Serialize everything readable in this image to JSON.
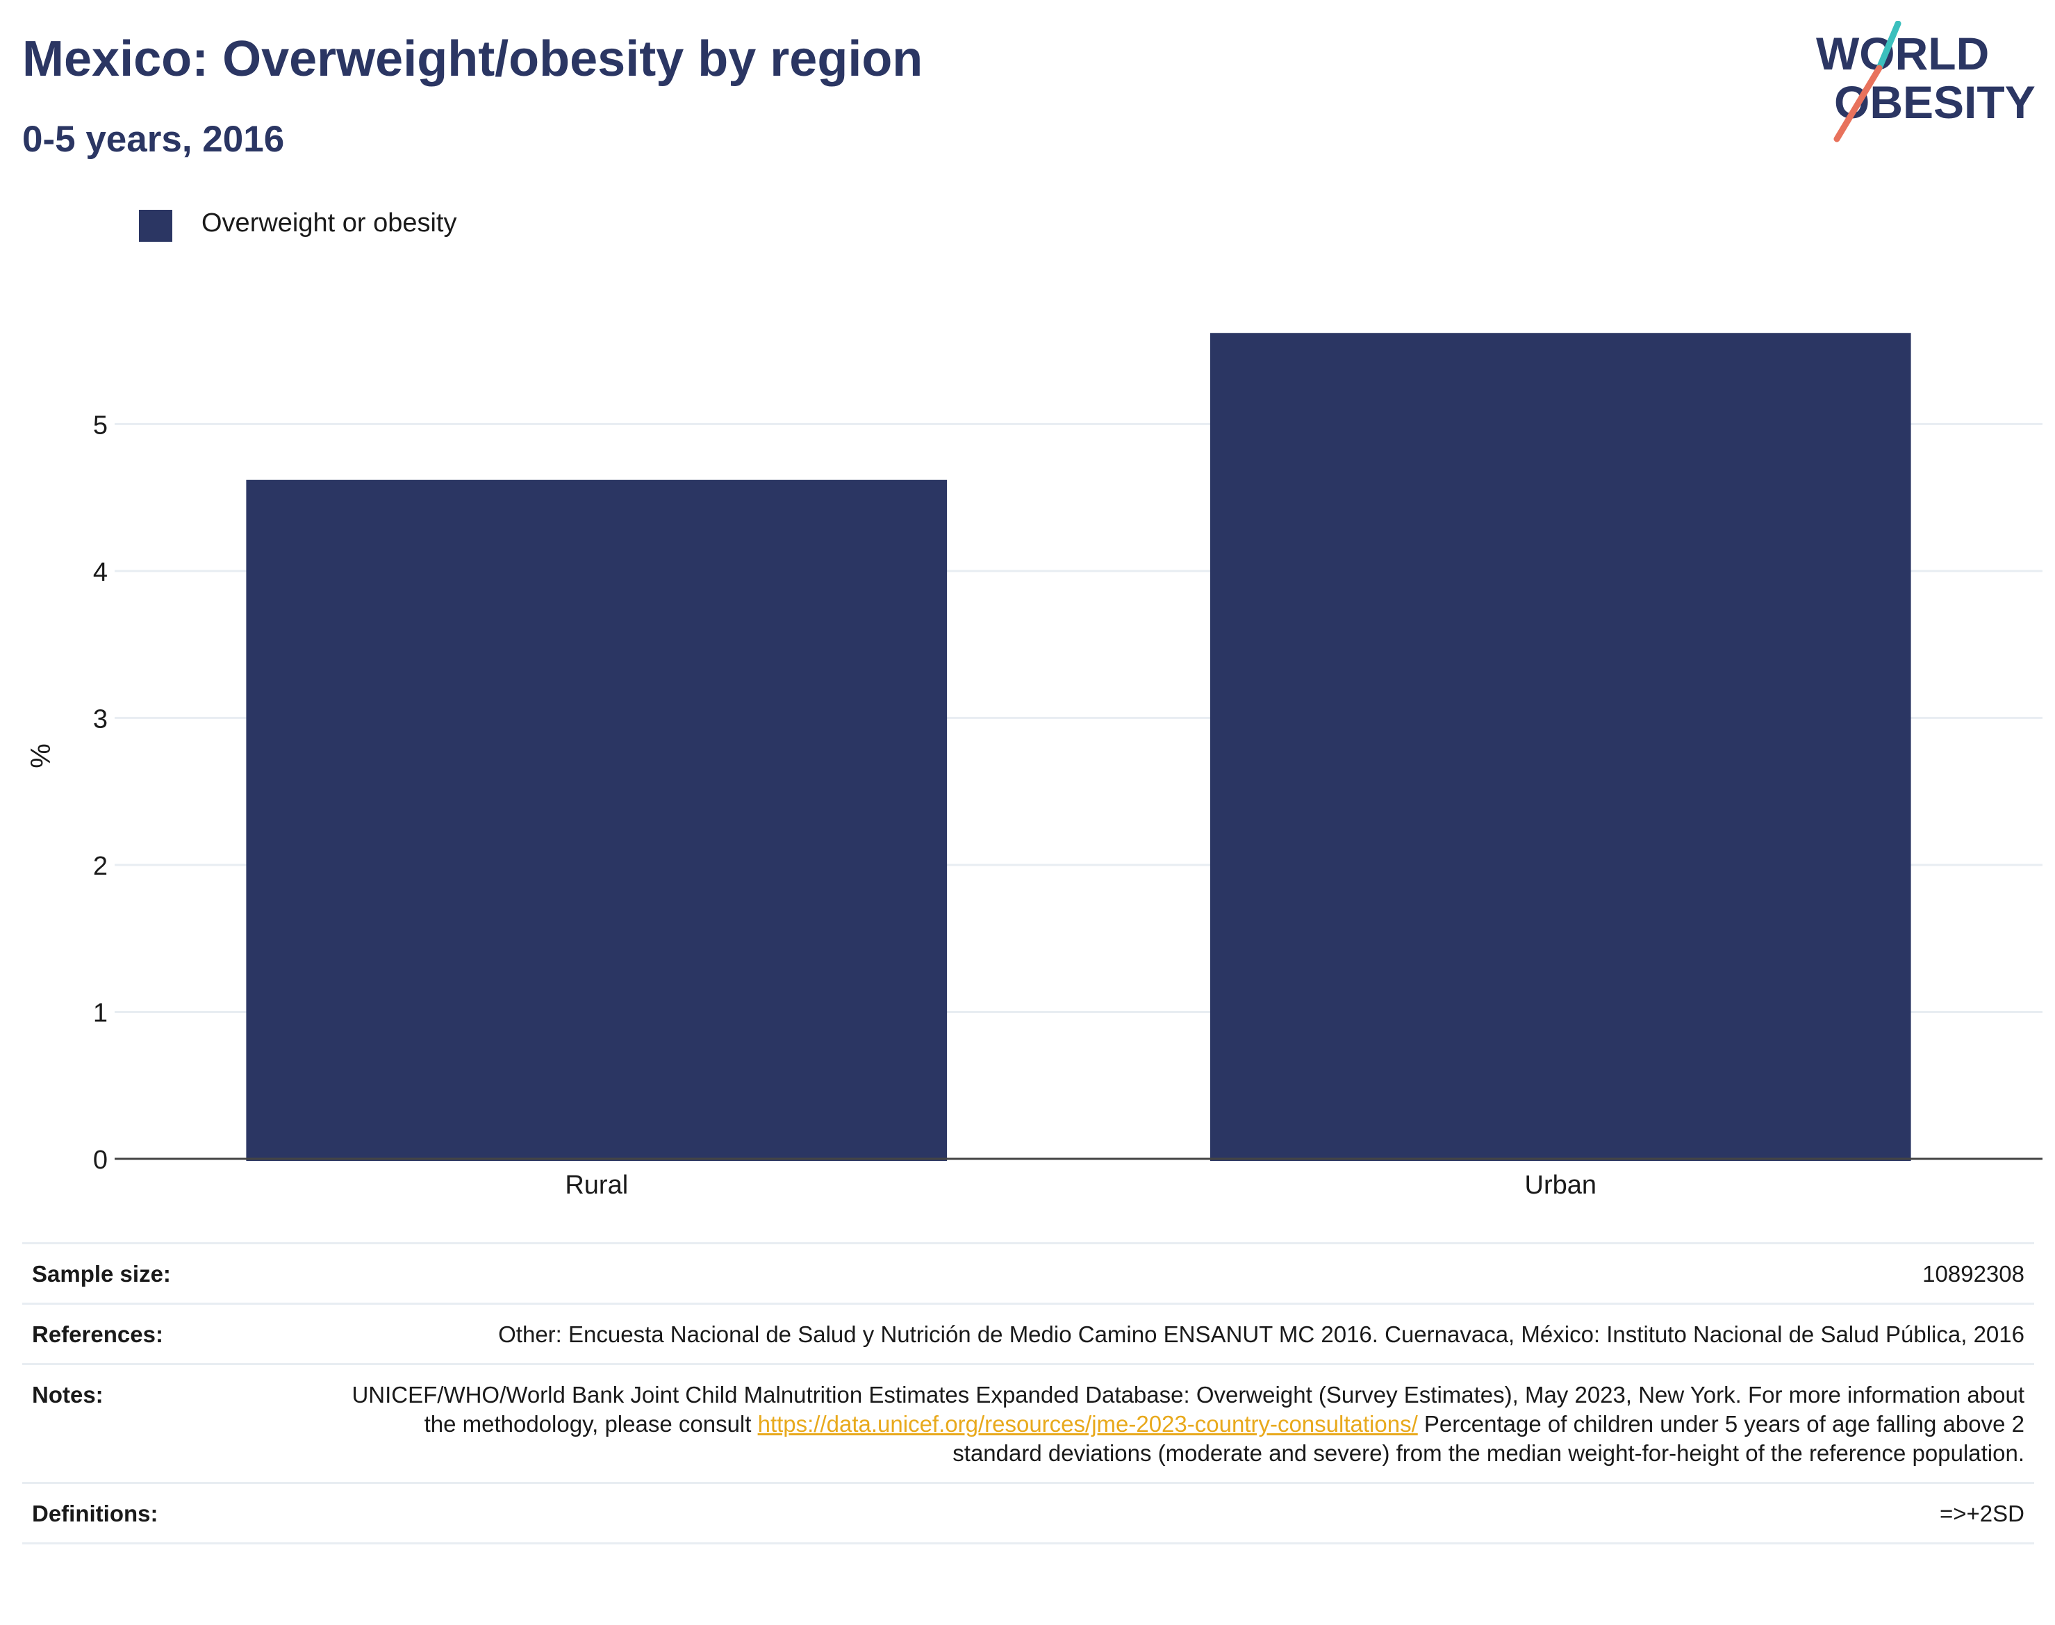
{
  "header": {
    "title": "Mexico: Overweight/obesity by region",
    "subtitle": "0-5 years, 2016"
  },
  "logo": {
    "line1": "WORLD",
    "line2": "OBESITY"
  },
  "colors": {
    "bar": "#2b3663",
    "title": "#2b3663",
    "link": "#e8a91c",
    "grid": "#e8edf2",
    "logo_teal": "#3bbfbd",
    "logo_coral": "#e8725c"
  },
  "chart_data": {
    "type": "bar",
    "title": "Mexico: Overweight/obesity by region",
    "subtitle": "0-5 years, 2016",
    "categories": [
      "Rural",
      "Urban"
    ],
    "series": [
      {
        "name": "Overweight or obesity",
        "values": [
          4.62,
          5.62
        ]
      }
    ],
    "xlabel": "",
    "ylabel": "%",
    "ylim": [
      0,
      5.9
    ],
    "yticks": [
      0,
      1,
      2,
      3,
      4,
      5
    ],
    "grid": true,
    "legend_position": "top-left"
  },
  "meta": {
    "sample_size_label": "Sample size:",
    "sample_size_value": "10892308",
    "references_label": "References:",
    "references_value": "Other: Encuesta Nacional de Salud y Nutrición de Medio Camino ENSANUT MC 2016. Cuernavaca, México: Instituto Nacional de Salud Pública, 2016",
    "notes_label": "Notes:",
    "notes_text_1": "UNICEF/WHO/World Bank Joint Child Malnutrition Estimates Expanded Database: Overweight (Survey Estimates), May 2023, New York. For more information about the methodology, please consult ",
    "notes_link": "https://data.unicef.org/resources/jme-2023-country-consultations/",
    "notes_text_2": " Percentage of children under 5 years of age falling above 2 standard deviations (moderate and severe) from the median weight-for-height of the reference population.",
    "definitions_label": "Definitions:",
    "definitions_value": "=>+2SD"
  }
}
